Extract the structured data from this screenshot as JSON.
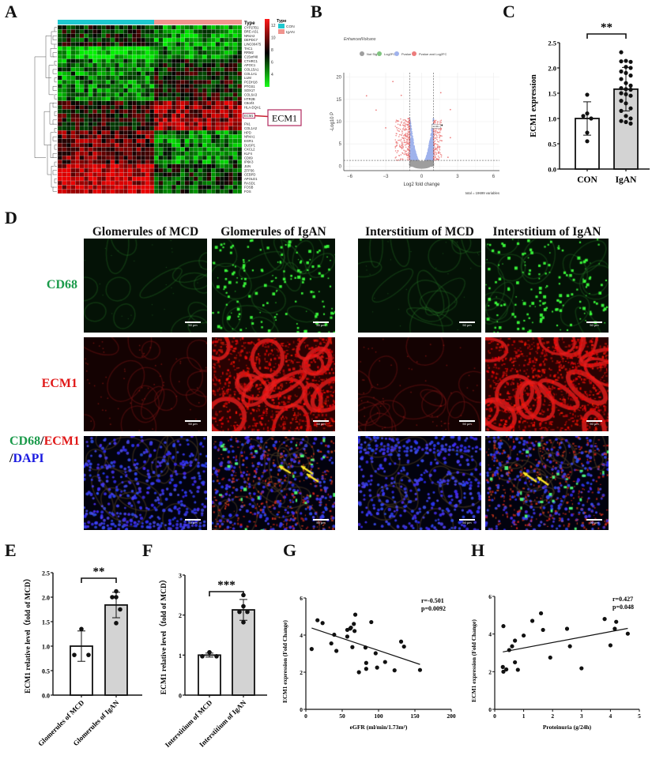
{
  "panels": {
    "A": {
      "letter": "A",
      "type_label": "Type",
      "legend_title": "Type",
      "groups": [
        {
          "name": "CON",
          "color": "#1ec8cf",
          "n_cols": 22
        },
        {
          "name": "IgAN",
          "color": "#f0948e",
          "n_cols": 20
        }
      ],
      "colorbar": {
        "ticks": [
          "12",
          "10",
          "8",
          "6",
          "4"
        ],
        "high": "#ff1a1a",
        "mid": "#000000",
        "low": "#1aff1a"
      },
      "genes": [
        "CYP27B1",
        "BRE-AS1",
        "NR4A2",
        "DEPDC7",
        "LINC00475",
        "TAC1",
        "RRM2",
        "C15orf48",
        "CTHRC1",
        "APOC1",
        "COL15A1",
        "COL1A1",
        "LUM",
        "PCDH18",
        "PTGS1",
        "SOX17",
        "COL6A3",
        "HTR2B",
        "C8orf4",
        "HLA-DQA1",
        "",
        "ECM1",
        "",
        "FN1",
        "COL1A2",
        "HPD",
        "NR4A1",
        "EGR1",
        "DUSP1",
        "CXCL2",
        "KLF4",
        "CD69",
        "IP6K3",
        "JUN",
        "ZFP36",
        "CEBPD",
        "APOLD1",
        "RASD1",
        "FOSB",
        "FOS"
      ],
      "highlight_gene": "ECM1",
      "callout_label": "ECM1",
      "blocks": [
        {
          "rows": [
            0,
            4
          ],
          "con": 0.45,
          "igan": 0.2
        },
        {
          "rows": [
            5,
            7
          ],
          "con": 0.05,
          "igan": 0.25
        },
        {
          "rows": [
            8,
            17
          ],
          "con": 0.25,
          "igan": 0.5
        },
        {
          "rows": [
            18,
            24
          ],
          "con": 0.55,
          "igan": 0.8
        },
        {
          "rows": [
            25,
            32
          ],
          "con": 0.72,
          "igan": 0.25
        },
        {
          "rows": [
            33,
            39
          ],
          "con": 0.9,
          "igan": 0.4
        }
      ]
    },
    "B": {
      "letter": "B",
      "title": "EnhancedVolcano",
      "legend": [
        {
          "label": "Not Sig",
          "color": "#9e9e9e"
        },
        {
          "label": "Log2FC",
          "color": "#7fc47f"
        },
        {
          "label": "Pvalue",
          "color": "#9fb2ec"
        },
        {
          "label": "Pvalue and Log2FC",
          "color": "#ec7c7c"
        }
      ],
      "xlabel": "Log2 fold change",
      "ylabel": "-Log10 P",
      "caption": "total = 19699 variables",
      "annotation": "ECM1"
    },
    "C": {
      "letter": "C"
    },
    "D": {
      "letter": "D",
      "columns": [
        "Glomerules of MCD",
        "Glomerules of IgAN",
        "Interstitium of MCD",
        "Interstitium of IgAN"
      ],
      "rows": [
        {
          "label": "CD68",
          "color": "#1a9a4a"
        },
        {
          "label": "ECM1",
          "color": "#e01818"
        },
        {
          "label_parts": [
            {
              "text": "CD68",
              "color": "#1a9a4a"
            },
            {
              "text": "/",
              "color": "#111111"
            },
            {
              "text": "ECM1",
              "color": "#e01818"
            }
          ],
          "label_parts2": [
            {
              "text": "/",
              "color": "#111111"
            },
            {
              "text": "DAPI",
              "color": "#1a1ae0"
            }
          ]
        }
      ],
      "scale_bar": "50 μm"
    },
    "E": {
      "letter": "E"
    },
    "F": {
      "letter": "F"
    },
    "G": {
      "letter": "G"
    },
    "H": {
      "letter": "H"
    }
  },
  "chart_data": [
    {
      "id": "B",
      "type": "scatter",
      "title": "EnhancedVolcano",
      "xlabel": "Log2 fold change",
      "ylabel": "-Log10 P",
      "xlim": [
        -6.5,
        6.5
      ],
      "ylim": [
        -1,
        21
      ],
      "xticks": [
        -6,
        -3,
        0,
        3,
        6
      ],
      "yticks": [
        0,
        5,
        10,
        15,
        20
      ],
      "thresholds": {
        "log2fc": [
          -1,
          1
        ],
        "neglog10p": 1.3
      },
      "legend": [
        "Not Sig",
        "Log2FC",
        "Pvalue",
        "Pvalue and Log2FC"
      ],
      "total_variables": 19699,
      "outliers": [
        [
          -4.6,
          15.8
        ],
        [
          -3.8,
          12.6
        ],
        [
          -2.4,
          19
        ],
        [
          -3,
          8.6
        ],
        [
          1.6,
          16.5
        ],
        [
          2.4,
          12.7
        ],
        [
          2.4,
          6.4
        ],
        [
          2.2,
          2
        ],
        [
          -1.7,
          15.9
        ]
      ],
      "labeled_point": {
        "label": "ECM1",
        "x": 1.7,
        "y": 9.2
      }
    },
    {
      "id": "C",
      "type": "bar",
      "categories": [
        "CON",
        "IgAN"
      ],
      "values": [
        1.0,
        1.58
      ],
      "errors": [
        0.33,
        0.43
      ],
      "ylabel": "ECM1 expression",
      "ylim": [
        0,
        2.5
      ],
      "yticks": [
        "0.0",
        "0.5",
        "1.0",
        "1.5",
        "2.0",
        "2.5"
      ],
      "significance": "**",
      "points": [
        [
          1.47,
          1.1,
          1.05,
          1.0,
          0.72,
          0.55
        ],
        [
          2.31,
          2.14,
          2.12,
          2.13,
          2.02,
          2.0,
          1.93,
          1.9,
          1.85,
          1.78,
          1.7,
          1.65,
          1.6,
          1.58,
          1.57,
          1.5,
          1.48,
          1.45,
          1.35,
          1.3,
          1.2,
          1.15,
          1.05,
          1.0,
          0.95,
          0.93,
          0.9
        ]
      ]
    },
    {
      "id": "E",
      "type": "bar",
      "categories": [
        "Glomerules of MCD",
        "Glomerules of IgAN"
      ],
      "values": [
        1.0,
        1.84
      ],
      "errors": [
        0.31,
        0.26
      ],
      "ylabel": "ECM1 relative level（fold of MCD）",
      "ylim": [
        0,
        2.5
      ],
      "yticks": [
        "0.0",
        "0.5",
        "1.0",
        "1.5",
        "2.0",
        "2.5"
      ],
      "significance": "**",
      "points": [
        [
          1.35,
          0.82,
          0.82
        ],
        [
          2.12,
          2.0,
          2.0,
          1.75,
          1.47
        ]
      ]
    },
    {
      "id": "F",
      "type": "bar",
      "categories": [
        "Interstitium of MCD",
        "Interstitium of IgAN"
      ],
      "values": [
        1.0,
        2.13
      ],
      "errors": [
        0.05,
        0.26
      ],
      "ylabel": "ECM1 relative level（fold of MCD）",
      "ylim": [
        0,
        3
      ],
      "yticks": [
        "0",
        "1",
        "2",
        "3"
      ],
      "significance": "***",
      "points": [
        [
          1.07,
          0.97,
          0.97
        ],
        [
          2.5,
          2.22,
          2.08,
          2.08,
          1.82
        ]
      ]
    },
    {
      "id": "G",
      "type": "scatter",
      "xlabel": "eGFR (ml/min/1.73m²)",
      "ylabel": "ECM1 expression (Fold Change)",
      "xlim": [
        0,
        200
      ],
      "ylim": [
        0,
        6
      ],
      "xticks": [
        "0",
        "50",
        "100",
        "150",
        "200"
      ],
      "yticks": [
        "0",
        "2",
        "4",
        "6"
      ],
      "stats": [
        "r=-0.501",
        "p=0.0092"
      ],
      "fit": [
        [
          8,
          4.38
        ],
        [
          157,
          2.42
        ]
      ],
      "points": [
        [
          8,
          3.25
        ],
        [
          16,
          4.8
        ],
        [
          23,
          4.65
        ],
        [
          35,
          3.55
        ],
        [
          39,
          4.02
        ],
        [
          42,
          3.15
        ],
        [
          57,
          4.28
        ],
        [
          57,
          3.92
        ],
        [
          61,
          4.35
        ],
        [
          62,
          4.4
        ],
        [
          64,
          3.35
        ],
        [
          66,
          4.6
        ],
        [
          67,
          4.22
        ],
        [
          68,
          5.1
        ],
        [
          73,
          2.0
        ],
        [
          82,
          3.33
        ],
        [
          83,
          2.5
        ],
        [
          83,
          2.18
        ],
        [
          90,
          4.7
        ],
        [
          96,
          3.02
        ],
        [
          98,
          2.25
        ],
        [
          109,
          2.55
        ],
        [
          122,
          2.1
        ],
        [
          131,
          3.65
        ],
        [
          135,
          3.38
        ],
        [
          157,
          2.12
        ]
      ]
    },
    {
      "id": "H",
      "type": "scatter",
      "xlabel": "Proteinuria (g/24h)",
      "ylabel": "ECM1 expression (Fold Change)",
      "xlim": [
        0,
        5
      ],
      "ylim": [
        0,
        6
      ],
      "xticks": [
        "0",
        "1",
        "2",
        "3",
        "4",
        "5"
      ],
      "yticks": [
        "0",
        "2",
        "4",
        "6"
      ],
      "stats": [
        "r=0.427",
        "p=0.048"
      ],
      "fit": [
        [
          0.28,
          3.05
        ],
        [
          4.6,
          4.3
        ]
      ],
      "points": [
        [
          0.28,
          2.25
        ],
        [
          0.3,
          2.0
        ],
        [
          0.3,
          4.42
        ],
        [
          0.4,
          2.12
        ],
        [
          0.5,
          3.15
        ],
        [
          0.6,
          3.35
        ],
        [
          0.7,
          3.65
        ],
        [
          0.7,
          2.5
        ],
        [
          0.8,
          2.1
        ],
        [
          1.0,
          3.92
        ],
        [
          1.3,
          4.7
        ],
        [
          1.6,
          5.1
        ],
        [
          1.67,
          4.22
        ],
        [
          1.92,
          2.75
        ],
        [
          2.5,
          4.28
        ],
        [
          2.6,
          3.35
        ],
        [
          3.0,
          2.18
        ],
        [
          3.8,
          4.8
        ],
        [
          4.0,
          3.4
        ],
        [
          4.15,
          4.28
        ],
        [
          4.2,
          4.65
        ],
        [
          4.6,
          4.02
        ]
      ]
    }
  ]
}
